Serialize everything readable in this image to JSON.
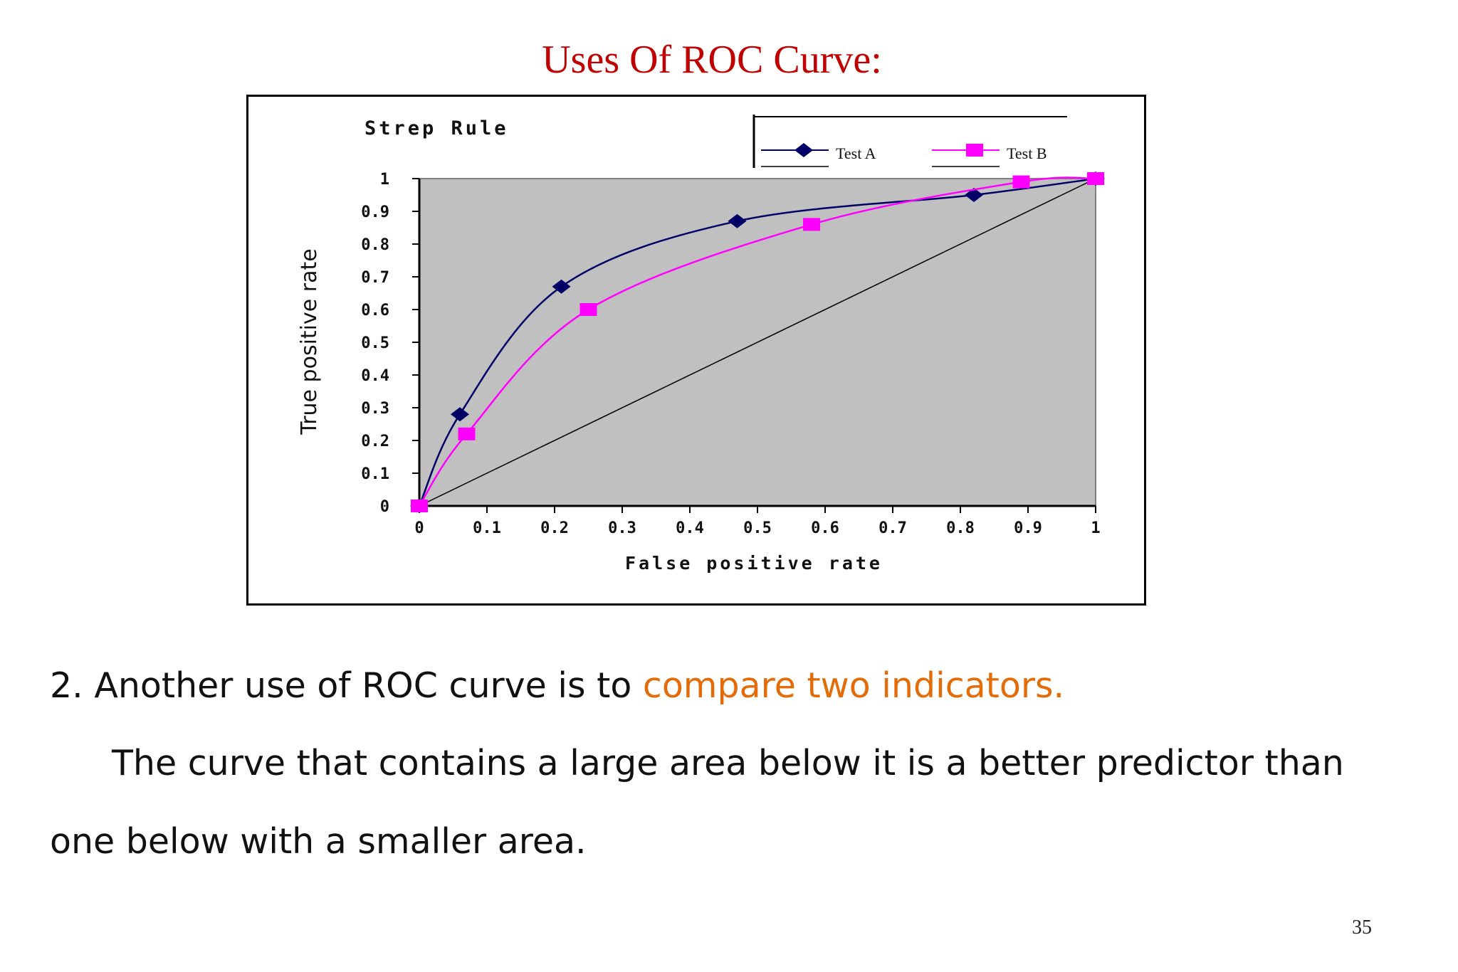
{
  "slide": {
    "title": "Uses Of ROC Curve:",
    "line1_prefix": "2.  Another use of ROC curve  is to ",
    "line1_highlight": "compare two indicators.",
    "line2": "The curve that contains a large area below it is a better predictor than",
    "line3": "one below with a smaller area.",
    "page_number": "35",
    "title_color": "#c00000",
    "highlight_color": "#e36c09"
  },
  "chart_data": {
    "type": "line",
    "title": "Strep Rule",
    "xlabel": "False positive rate",
    "ylabel": "True positive rate",
    "xlim": [
      0,
      1
    ],
    "ylim": [
      0,
      1
    ],
    "xticks": [
      "0",
      "0.1",
      "0.2",
      "0.3",
      "0.4",
      "0.5",
      "0.6",
      "0.7",
      "0.8",
      "0.9",
      "1"
    ],
    "yticks": [
      "0",
      "0.1",
      "0.2",
      "0.3",
      "0.4",
      "0.5",
      "0.6",
      "0.7",
      "0.8",
      "0.9",
      "1"
    ],
    "legend_position": "top-right",
    "plot_background": "#c0c0c0",
    "series": [
      {
        "name": "Test A",
        "color": "#000066",
        "marker": "diamond",
        "x": [
          0,
          0.06,
          0.21,
          0.47,
          0.82,
          1
        ],
        "y": [
          0,
          0.28,
          0.67,
          0.87,
          0.95,
          1
        ]
      },
      {
        "name": "Test B",
        "color": "#ff00ff",
        "marker": "square",
        "x": [
          0,
          0.07,
          0.25,
          0.58,
          0.89,
          1
        ],
        "y": [
          0,
          0.22,
          0.6,
          0.86,
          0.99,
          1
        ]
      }
    ],
    "reference_line": {
      "x": [
        0,
        1
      ],
      "y": [
        0,
        1
      ],
      "color": "#000000"
    }
  }
}
